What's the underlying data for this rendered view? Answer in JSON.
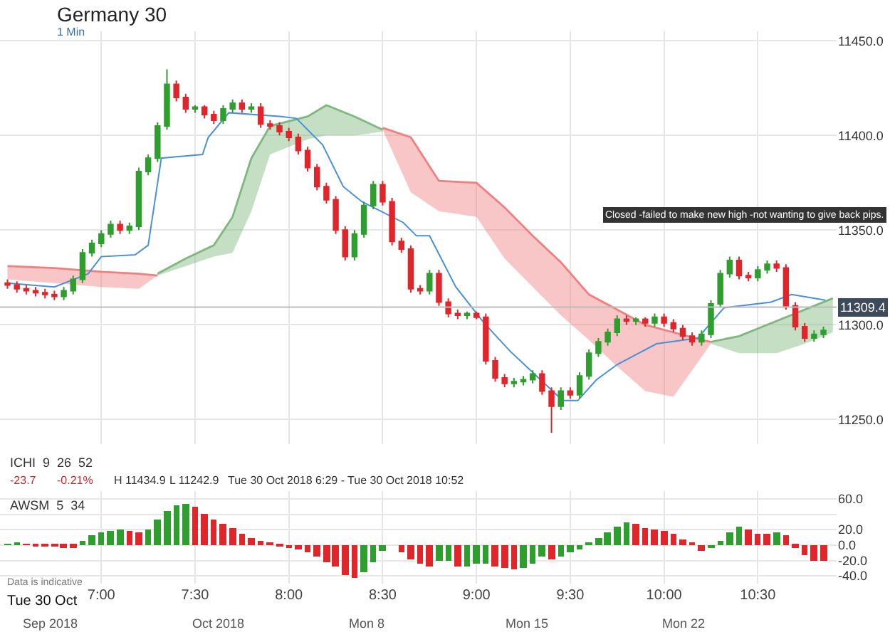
{
  "chart_data": [
    {
      "type": "candlestick",
      "title": "Germany 30",
      "subtitle": "1 Min",
      "x": [
        6.5,
        6.55,
        6.6,
        6.65,
        6.7,
        6.75,
        6.8,
        6.85,
        6.9,
        6.95,
        7.0,
        7.05,
        7.1,
        7.15,
        7.2,
        7.25,
        7.3,
        7.35,
        7.4,
        7.45,
        7.5,
        7.55,
        7.6,
        7.65,
        7.7,
        7.75,
        7.8,
        7.85,
        7.9,
        7.95,
        8.0,
        8.05,
        8.1,
        8.15,
        8.2,
        8.25,
        8.3,
        8.35,
        8.4,
        8.45,
        8.5,
        8.55,
        8.6,
        8.65,
        8.7,
        8.75,
        8.8,
        8.85,
        8.9,
        8.95,
        9.0,
        9.05,
        9.1,
        9.15,
        9.2,
        9.25,
        9.3,
        9.35,
        9.4,
        9.45,
        9.5,
        9.55,
        9.6,
        9.65,
        9.7,
        9.75,
        9.8,
        9.85,
        9.9,
        9.95,
        10.0,
        10.05,
        10.1,
        10.15,
        10.2,
        10.25,
        10.3,
        10.35,
        10.4,
        10.45,
        10.5,
        10.55,
        10.6,
        10.65,
        10.7,
        10.75,
        10.8,
        10.85
      ],
      "ohlc": [
        [
          11322,
          11324,
          11319,
          11321
        ],
        [
          11321,
          11323,
          11317,
          11319
        ],
        [
          11319,
          11321,
          11316,
          11318
        ],
        [
          11318,
          11320,
          11315,
          11317
        ],
        [
          11317,
          11319,
          11314,
          11316
        ],
        [
          11316,
          11318,
          11313,
          11315
        ],
        [
          11315,
          11320,
          11313,
          11318
        ],
        [
          11318,
          11326,
          11316,
          11324
        ],
        [
          11324,
          11340,
          11322,
          11338
        ],
        [
          11338,
          11345,
          11336,
          11343
        ],
        [
          11343,
          11350,
          11341,
          11348
        ],
        [
          11348,
          11355,
          11346,
          11353
        ],
        [
          11353,
          11355,
          11348,
          11350
        ],
        [
          11350,
          11354,
          11348,
          11352
        ],
        [
          11352,
          11383,
          11350,
          11381
        ],
        [
          11381,
          11390,
          11379,
          11388
        ],
        [
          11388,
          11407,
          11386,
          11405
        ],
        [
          11405,
          11434.9,
          11403,
          11427
        ],
        [
          11427,
          11429,
          11418,
          11420
        ],
        [
          11420,
          11422,
          11412,
          11414
        ],
        [
          11414,
          11416,
          11412,
          11415
        ],
        [
          11415,
          11416,
          11409,
          11411
        ],
        [
          11411,
          11413,
          11406,
          11408
        ],
        [
          11408,
          11416,
          11406,
          11414
        ],
        [
          11414,
          11419,
          11412,
          11417
        ],
        [
          11417,
          11419,
          11412,
          11414
        ],
        [
          11414,
          11417,
          11412,
          11415
        ],
        [
          11415,
          11417,
          11404,
          11406
        ],
        [
          11406,
          11408,
          11403,
          11405
        ],
        [
          11405,
          11407,
          11400,
          11402
        ],
        [
          11402,
          11404,
          11397,
          11399
        ],
        [
          11399,
          11401,
          11390,
          11392
        ],
        [
          11392,
          11394,
          11381,
          11383
        ],
        [
          11383,
          11385,
          11371,
          11373
        ],
        [
          11373,
          11375,
          11364,
          11366
        ],
        [
          11366,
          11368,
          11348,
          11350
        ],
        [
          11350,
          11352,
          11334,
          11336
        ],
        [
          11336,
          11350,
          11334,
          11348
        ],
        [
          11348,
          11365,
          11346,
          11363
        ],
        [
          11363,
          11376,
          11361,
          11374
        ],
        [
          11374,
          11376,
          11363,
          11365
        ],
        [
          11365,
          11367,
          11342,
          11344
        ],
        [
          11344,
          11346,
          11338,
          11340
        ],
        [
          11340,
          11342,
          11317,
          11319
        ],
        [
          11319,
          11321,
          11316,
          11318
        ],
        [
          11318,
          11329,
          11316,
          11327
        ],
        [
          11327,
          11329,
          11310,
          11312
        ],
        [
          11312,
          11314,
          11304,
          11306
        ],
        [
          11306,
          11308,
          11303,
          11305
        ],
        [
          11305,
          11307,
          11303,
          11306
        ],
        [
          11306,
          11307,
          11303,
          11304
        ],
        [
          11304,
          11306,
          11279,
          11281
        ],
        [
          11281,
          11283,
          11270,
          11272
        ],
        [
          11272,
          11274,
          11267,
          11269
        ],
        [
          11269,
          11272,
          11267,
          11270
        ],
        [
          11270,
          11273,
          11268,
          11271
        ],
        [
          11271,
          11276,
          11269,
          11274
        ],
        [
          11274,
          11276,
          11263,
          11265
        ],
        [
          11265,
          11267,
          11242.9,
          11257
        ],
        [
          11257,
          11267,
          11255,
          11265
        ],
        [
          11265,
          11267,
          11261,
          11263
        ],
        [
          11263,
          11275,
          11261,
          11273
        ],
        [
          11273,
          11287,
          11271,
          11285
        ],
        [
          11285,
          11293,
          11283,
          11291
        ],
        [
          11291,
          11298,
          11289,
          11296
        ],
        [
          11296,
          11305,
          11294,
          11303
        ],
        [
          11303,
          11305,
          11300,
          11302
        ],
        [
          11302,
          11304,
          11300,
          11303
        ],
        [
          11303,
          11304,
          11299,
          11301
        ],
        [
          11301,
          11306,
          11299,
          11304
        ],
        [
          11304,
          11306,
          11299,
          11301
        ],
        [
          11301,
          11303,
          11296,
          11298
        ],
        [
          11298,
          11300,
          11292,
          11294
        ],
        [
          11294,
          11296,
          11289,
          11291
        ],
        [
          11291,
          11297,
          11289,
          11295
        ],
        [
          11295,
          11313,
          11293,
          11311
        ],
        [
          11311,
          11329,
          11309,
          11327
        ],
        [
          11327,
          11336,
          11325,
          11334
        ],
        [
          11334,
          11336,
          11324,
          11326
        ],
        [
          11326,
          11328,
          11323,
          11325
        ],
        [
          11325,
          11331,
          11323,
          11329
        ],
        [
          11329,
          11334,
          11327,
          11332
        ],
        [
          11332,
          11334,
          11328,
          11330
        ],
        [
          11330,
          11332,
          11308,
          11310
        ],
        [
          11310,
          11312,
          11297,
          11299
        ],
        [
          11299,
          11301,
          11291,
          11293
        ],
        [
          11293,
          11297,
          11291,
          11295
        ],
        [
          11295,
          11299,
          11293,
          11297
        ]
      ],
      "series": [
        {
          "type": "line",
          "color": "#f08080",
          "x": [
            6.5,
            6.75,
            7.0,
            7.2,
            7.3
          ],
          "values": [
            11331,
            11330,
            11328,
            11327,
            11326
          ],
          "upper": [
            11331,
            11330,
            11328,
            11327,
            11326
          ],
          "lower": [
            11324,
            11322,
            11320,
            11319,
            11326
          ]
        },
        {
          "type": "line",
          "color": "#7fb87f",
          "x": [
            7.3,
            7.45,
            7.6,
            7.7,
            7.8,
            7.9,
            8.1,
            8.2,
            8.35,
            8.5
          ],
          "values": [
            11327,
            11335,
            11342,
            11357,
            11388,
            11405,
            11410,
            11416,
            11410,
            11403
          ],
          "upper": [
            11327,
            11335,
            11342,
            11357,
            11388,
            11405,
            11410,
            11416,
            11410,
            11403
          ],
          "lower": [
            11326,
            11331,
            11336,
            11338,
            11360,
            11390,
            11398,
            11400,
            11400,
            11402
          ]
        },
        {
          "type": "line",
          "color": "#f08080",
          "x": [
            8.5,
            8.65,
            8.8,
            9.0,
            9.15,
            9.3,
            9.45,
            9.6,
            9.75,
            9.9,
            10.05,
            10.2,
            10.25
          ],
          "values": [
            11404,
            11399,
            11376,
            11375,
            11362,
            11347,
            11333,
            11316,
            11308,
            11300,
            11296,
            11292,
            11291
          ],
          "upper": [
            11404,
            11399,
            11376,
            11375,
            11362,
            11347,
            11333,
            11316,
            11308,
            11300,
            11296,
            11292,
            11291
          ],
          "lower": [
            11403,
            11370,
            11360,
            11357,
            11335,
            11320,
            11305,
            11292,
            11278,
            11265,
            11262,
            11283,
            11290
          ]
        },
        {
          "type": "line",
          "color": "#7fb87f",
          "x": [
            10.25,
            10.4,
            10.6,
            10.75,
            10.9
          ],
          "values": [
            11291,
            11294,
            11302,
            11308,
            11314
          ],
          "upper": [
            11291,
            11294,
            11302,
            11308,
            11314
          ],
          "lower": [
            11290,
            11285,
            11285,
            11290,
            11296
          ]
        },
        {
          "type": "line",
          "color": "#4a90d9",
          "x": [
            6.5,
            6.75,
            6.93,
            7.0,
            7.18,
            7.25,
            7.32,
            7.54,
            7.57,
            7.68,
            7.96,
            8.04,
            8.18,
            8.29,
            8.39,
            8.61,
            8.68,
            8.75,
            8.89,
            9.04,
            9.18,
            9.32,
            9.46,
            9.54,
            9.64,
            9.75,
            9.96,
            10.18,
            10.32,
            10.57,
            10.68,
            10.86
          ],
          "values": [
            11322,
            11320,
            11327,
            11336,
            11337,
            11342,
            11388,
            11390,
            11399,
            11412,
            11410,
            11409,
            11395,
            11373,
            11365,
            11354,
            11347,
            11347,
            11320,
            11301,
            11286,
            11273,
            11260,
            11260,
            11271,
            11279,
            11290,
            11293,
            11309,
            11312,
            11316,
            11313
          ]
        }
      ],
      "ylim": [
        11237,
        11455
      ],
      "yticks": [
        {
          "value": 11250,
          "label": "11250.0"
        },
        {
          "value": 11300,
          "label": "11300.0"
        },
        {
          "value": 11350,
          "label": "11350.0"
        },
        {
          "value": 11400,
          "label": "11400.0"
        },
        {
          "value": 11450,
          "label": "11450.0"
        }
      ],
      "xlim": [
        6.46,
        10.92
      ],
      "xticks": [
        {
          "value": 7,
          "label": null
        },
        {
          "value": 7.5,
          "label": null
        },
        {
          "value": 8,
          "label": null
        },
        {
          "value": 8.5,
          "label": null
        },
        {
          "value": 9,
          "label": null
        },
        {
          "value": 9.5,
          "label": null
        },
        {
          "value": 10,
          "label": null
        },
        {
          "value": 10.5,
          "label": null
        }
      ],
      "tick_labels": "y",
      "grid": true,
      "ref_lines": [
        {
          "axis": "y",
          "value": 11309.4,
          "label": "11309.4",
          "color": "#bbbbbb"
        }
      ],
      "annotations": [
        "ICHI  9  26  52",
        "-23.7",
        "-0.21%",
        "H 11434.9",
        "L 11242.9",
        "Tue 30 Oct 2018 6:29 - Tue 30 Oct 2018 10:52",
        "Closed -failed to make new high -not wanting to give back pips."
      ]
    },
    {
      "type": "bar",
      "x": [
        6.5,
        6.55,
        6.6,
        6.65,
        6.7,
        6.75,
        6.8,
        6.85,
        6.9,
        6.95,
        7.0,
        7.05,
        7.1,
        7.15,
        7.2,
        7.25,
        7.3,
        7.35,
        7.4,
        7.45,
        7.5,
        7.55,
        7.6,
        7.65,
        7.7,
        7.75,
        7.8,
        7.85,
        7.9,
        7.95,
        8.0,
        8.05,
        8.1,
        8.15,
        8.2,
        8.25,
        8.3,
        8.35,
        8.4,
        8.45,
        8.5,
        8.55,
        8.6,
        8.65,
        8.7,
        8.75,
        8.8,
        8.85,
        8.9,
        8.95,
        9.0,
        9.05,
        9.1,
        9.15,
        9.2,
        9.25,
        9.3,
        9.35,
        9.4,
        9.45,
        9.5,
        9.55,
        9.6,
        9.65,
        9.7,
        9.75,
        9.8,
        9.85,
        9.9,
        9.95,
        10.0,
        10.05,
        10.1,
        10.15,
        10.2,
        10.25,
        10.3,
        10.35,
        10.4,
        10.45,
        10.5,
        10.55,
        10.6,
        10.65,
        10.7,
        10.75,
        10.8,
        10.85
      ],
      "values": [
        1,
        2,
        1,
        -1,
        -2,
        -2,
        -3,
        -3,
        5,
        13,
        16,
        18,
        20,
        19,
        17,
        20,
        33,
        45,
        52,
        54,
        50,
        40,
        33,
        27,
        22,
        15,
        10,
        5,
        2,
        -2,
        -4,
        -6,
        -10,
        -15,
        -22,
        -28,
        -38,
        -43,
        -35,
        -22,
        -8,
        0,
        -10,
        -18,
        -25,
        -27,
        -20,
        -20,
        -28,
        -27,
        -25,
        -25,
        -28,
        -30,
        -32,
        -30,
        -24,
        -15,
        -18,
        -15,
        -10,
        -5,
        3,
        10,
        17,
        24,
        29,
        27,
        22,
        20,
        18,
        14,
        8,
        2,
        -7,
        -4,
        5,
        17,
        23,
        21,
        15,
        15,
        16,
        13,
        -3,
        -13,
        -20,
        -20
      ],
      "colors": [
        "#2e9e2e",
        "#2e9e2e",
        "#e0262b",
        "#e0262b",
        "#e0262b",
        "#e0262b",
        "#e0262b",
        "#e0262b",
        "#2e9e2e",
        "#2e9e2e",
        "#2e9e2e",
        "#2e9e2e",
        "#2e9e2e",
        "#e0262b",
        "#e0262b",
        "#2e9e2e",
        "#2e9e2e",
        "#2e9e2e",
        "#2e9e2e",
        "#2e9e2e",
        "#e0262b",
        "#e0262b",
        "#e0262b",
        "#e0262b",
        "#e0262b",
        "#e0262b",
        "#e0262b",
        "#e0262b",
        "#e0262b",
        "#e0262b",
        "#e0262b",
        "#e0262b",
        "#e0262b",
        "#e0262b",
        "#e0262b",
        "#e0262b",
        "#e0262b",
        "#e0262b",
        "#2e9e2e",
        "#2e9e2e",
        "#2e9e2e",
        "#2e9e2e",
        "#e0262b",
        "#e0262b",
        "#e0262b",
        "#e0262b",
        "#2e9e2e",
        "#2e9e2e",
        "#e0262b",
        "#2e9e2e",
        "#2e9e2e",
        "#2e9e2e",
        "#e0262b",
        "#e0262b",
        "#e0262b",
        "#2e9e2e",
        "#2e9e2e",
        "#2e9e2e",
        "#e0262b",
        "#2e9e2e",
        "#2e9e2e",
        "#2e9e2e",
        "#2e9e2e",
        "#2e9e2e",
        "#2e9e2e",
        "#2e9e2e",
        "#2e9e2e",
        "#e0262b",
        "#e0262b",
        "#e0262b",
        "#e0262b",
        "#e0262b",
        "#e0262b",
        "#e0262b",
        "#e0262b",
        "#2e9e2e",
        "#2e9e2e",
        "#2e9e2e",
        "#2e9e2e",
        "#e0262b",
        "#e0262b",
        "#e0262b",
        "#2e9e2e",
        "#e0262b",
        "#e0262b",
        "#e0262b",
        "#e0262b",
        "#e0262b"
      ],
      "ylim": [
        -50,
        70
      ],
      "yticks": [
        {
          "value": 60,
          "label": "60.0"
        },
        {
          "value": 40,
          "label": null
        },
        {
          "value": 20,
          "label": "20.0"
        },
        {
          "value": 0,
          "label": "0.0"
        },
        {
          "value": -20,
          "label": "-20.0"
        },
        {
          "value": -40,
          "label": "-40.0"
        }
      ],
      "xlim": [
        6.46,
        10.92
      ],
      "xticks": [
        {
          "value": 7,
          "label": "7:00"
        },
        {
          "value": 7.5,
          "label": "7:30"
        },
        {
          "value": 8,
          "label": "8:00"
        },
        {
          "value": 8.5,
          "label": "8:30"
        },
        {
          "value": 9,
          "label": "9:00"
        },
        {
          "value": 9.5,
          "label": "9:30"
        },
        {
          "value": 10,
          "label": "10:00"
        },
        {
          "value": 10.5,
          "label": "10:30"
        }
      ],
      "grid": true,
      "annotations": [
        "AWSM  5  34",
        "Data is indicative",
        "Tue 30 Oct",
        "Sep 2018",
        "Oct 2018",
        "Mon 8",
        "Mon 15",
        "Mon 22"
      ]
    }
  ]
}
